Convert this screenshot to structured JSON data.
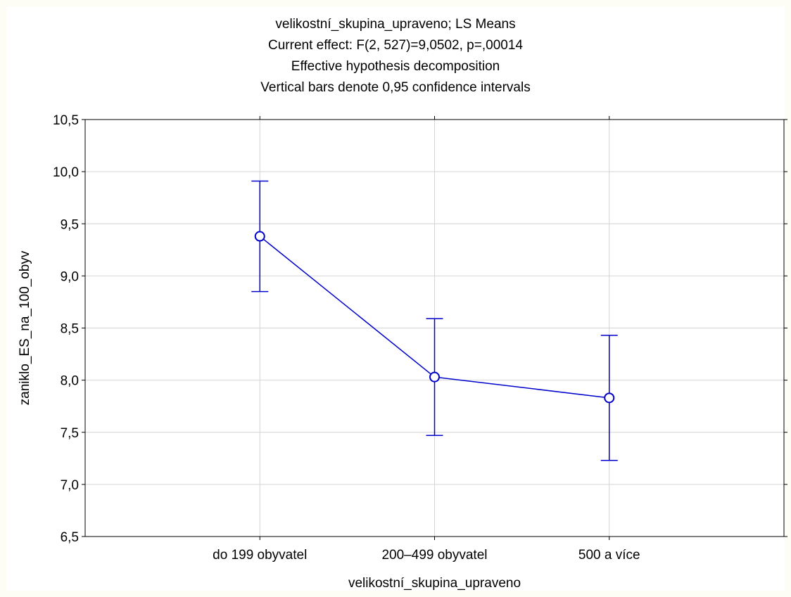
{
  "chart_data": {
    "type": "line",
    "title_lines": [
      "velikostní_skupina_upraveno; LS Means",
      "Current effect: F(2, 527)=9,0502, p=,00014",
      "Effective hypothesis decomposition",
      "Vertical bars denote 0,95 confidence intervals"
    ],
    "xlabel": "velikostní_skupina_upraveno",
    "ylabel": "zaniklo_ES_na_100_obyv",
    "categories": [
      "do 199 obyvatel",
      "200–499 obyvatel",
      "500 a více"
    ],
    "series": [
      {
        "values": [
          9.38,
          8.03,
          7.83
        ],
        "ci_lower": [
          8.85,
          7.47,
          7.23
        ],
        "ci_upper": [
          9.91,
          8.59,
          8.43
        ]
      }
    ],
    "ylim": [
      6.5,
      10.5
    ],
    "yticks": [
      6.5,
      7.0,
      7.5,
      8.0,
      8.5,
      9.0,
      9.5,
      10.0,
      10.5
    ],
    "ytick_labels": [
      "6,5",
      "7,0",
      "7,5",
      "8,0",
      "8,5",
      "9,0",
      "9,5",
      "10,0",
      "10,5"
    ],
    "grid": true,
    "colors": {
      "series": "#0000cc",
      "grid": "#d4d4d4",
      "axis": "#000000"
    }
  }
}
